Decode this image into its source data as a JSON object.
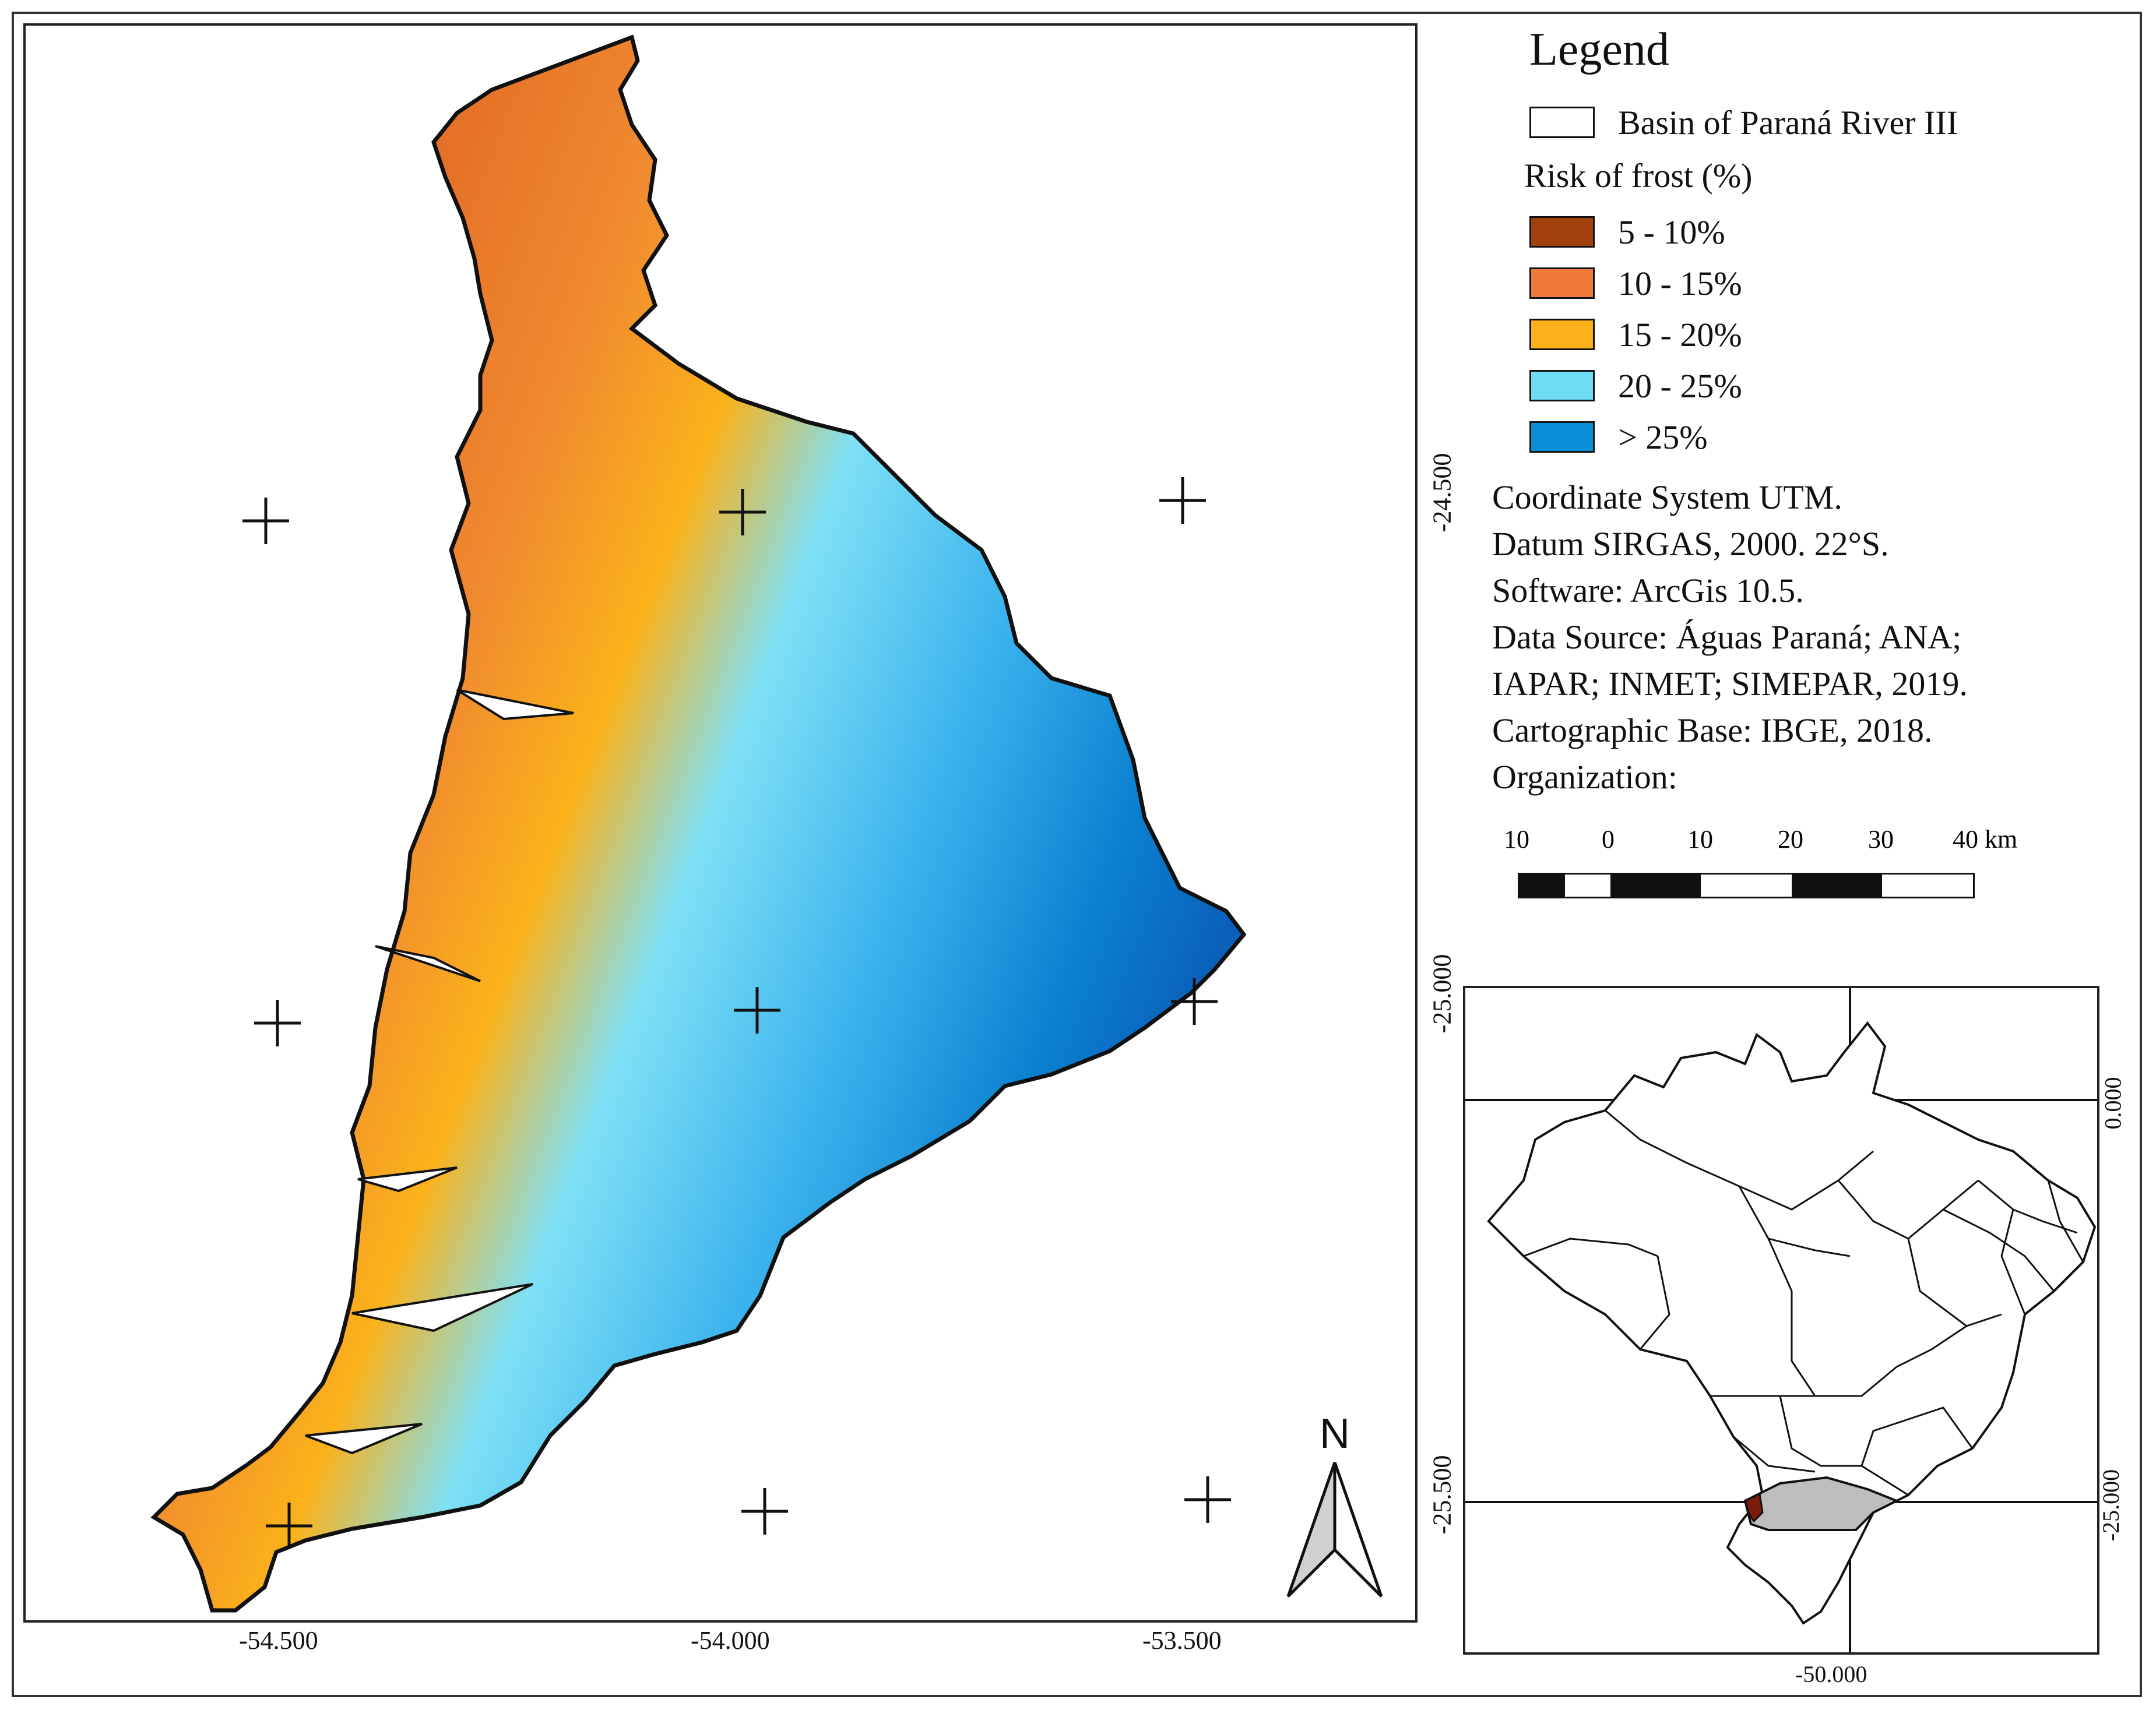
{
  "legend": {
    "title": "Legend",
    "basin_label": "Basin of Paraná River III",
    "risk_title": "Risk of frost (%)",
    "classes": [
      {
        "label": "5 - 10%",
        "color": "#a1410d"
      },
      {
        "label": "10 - 15%",
        "color": "#f07a3a"
      },
      {
        "label": "15 - 20%",
        "color": "#fbb21a"
      },
      {
        "label": "20 - 25%",
        "color": "#6fdcf5"
      },
      {
        "label": "> 25%",
        "color": "#0a90d8"
      }
    ]
  },
  "info": [
    "Coordinate System UTM.",
    "Datum SIRGAS, 2000. 22°S.",
    "Software: ArcGis 10.5.",
    "Data Source: Águas Paraná; ANA;",
    "IAPAR; INMET; SIMEPAR, 2019.",
    "Cartographic Base: IBGE, 2018.",
    "Organization:"
  ],
  "scale": {
    "labels": [
      "10",
      "0",
      "10",
      "20",
      "30",
      "40 km"
    ]
  },
  "main_map": {
    "x_ticks": [
      "-54.500",
      "-54.000",
      "-53.500"
    ],
    "y_ticks": [
      "-24.500",
      "-25.000",
      "-25.500"
    ]
  },
  "inset_map": {
    "x_tick": "-50.000",
    "y_ticks": [
      "0.000",
      "-25.000"
    ]
  },
  "north_arrow": {
    "label": "N"
  },
  "colors": {
    "frame": "#333333",
    "outline": "#111111",
    "inset_state": "#bdbdbd",
    "basin_highlight": "#7a1b0c"
  }
}
